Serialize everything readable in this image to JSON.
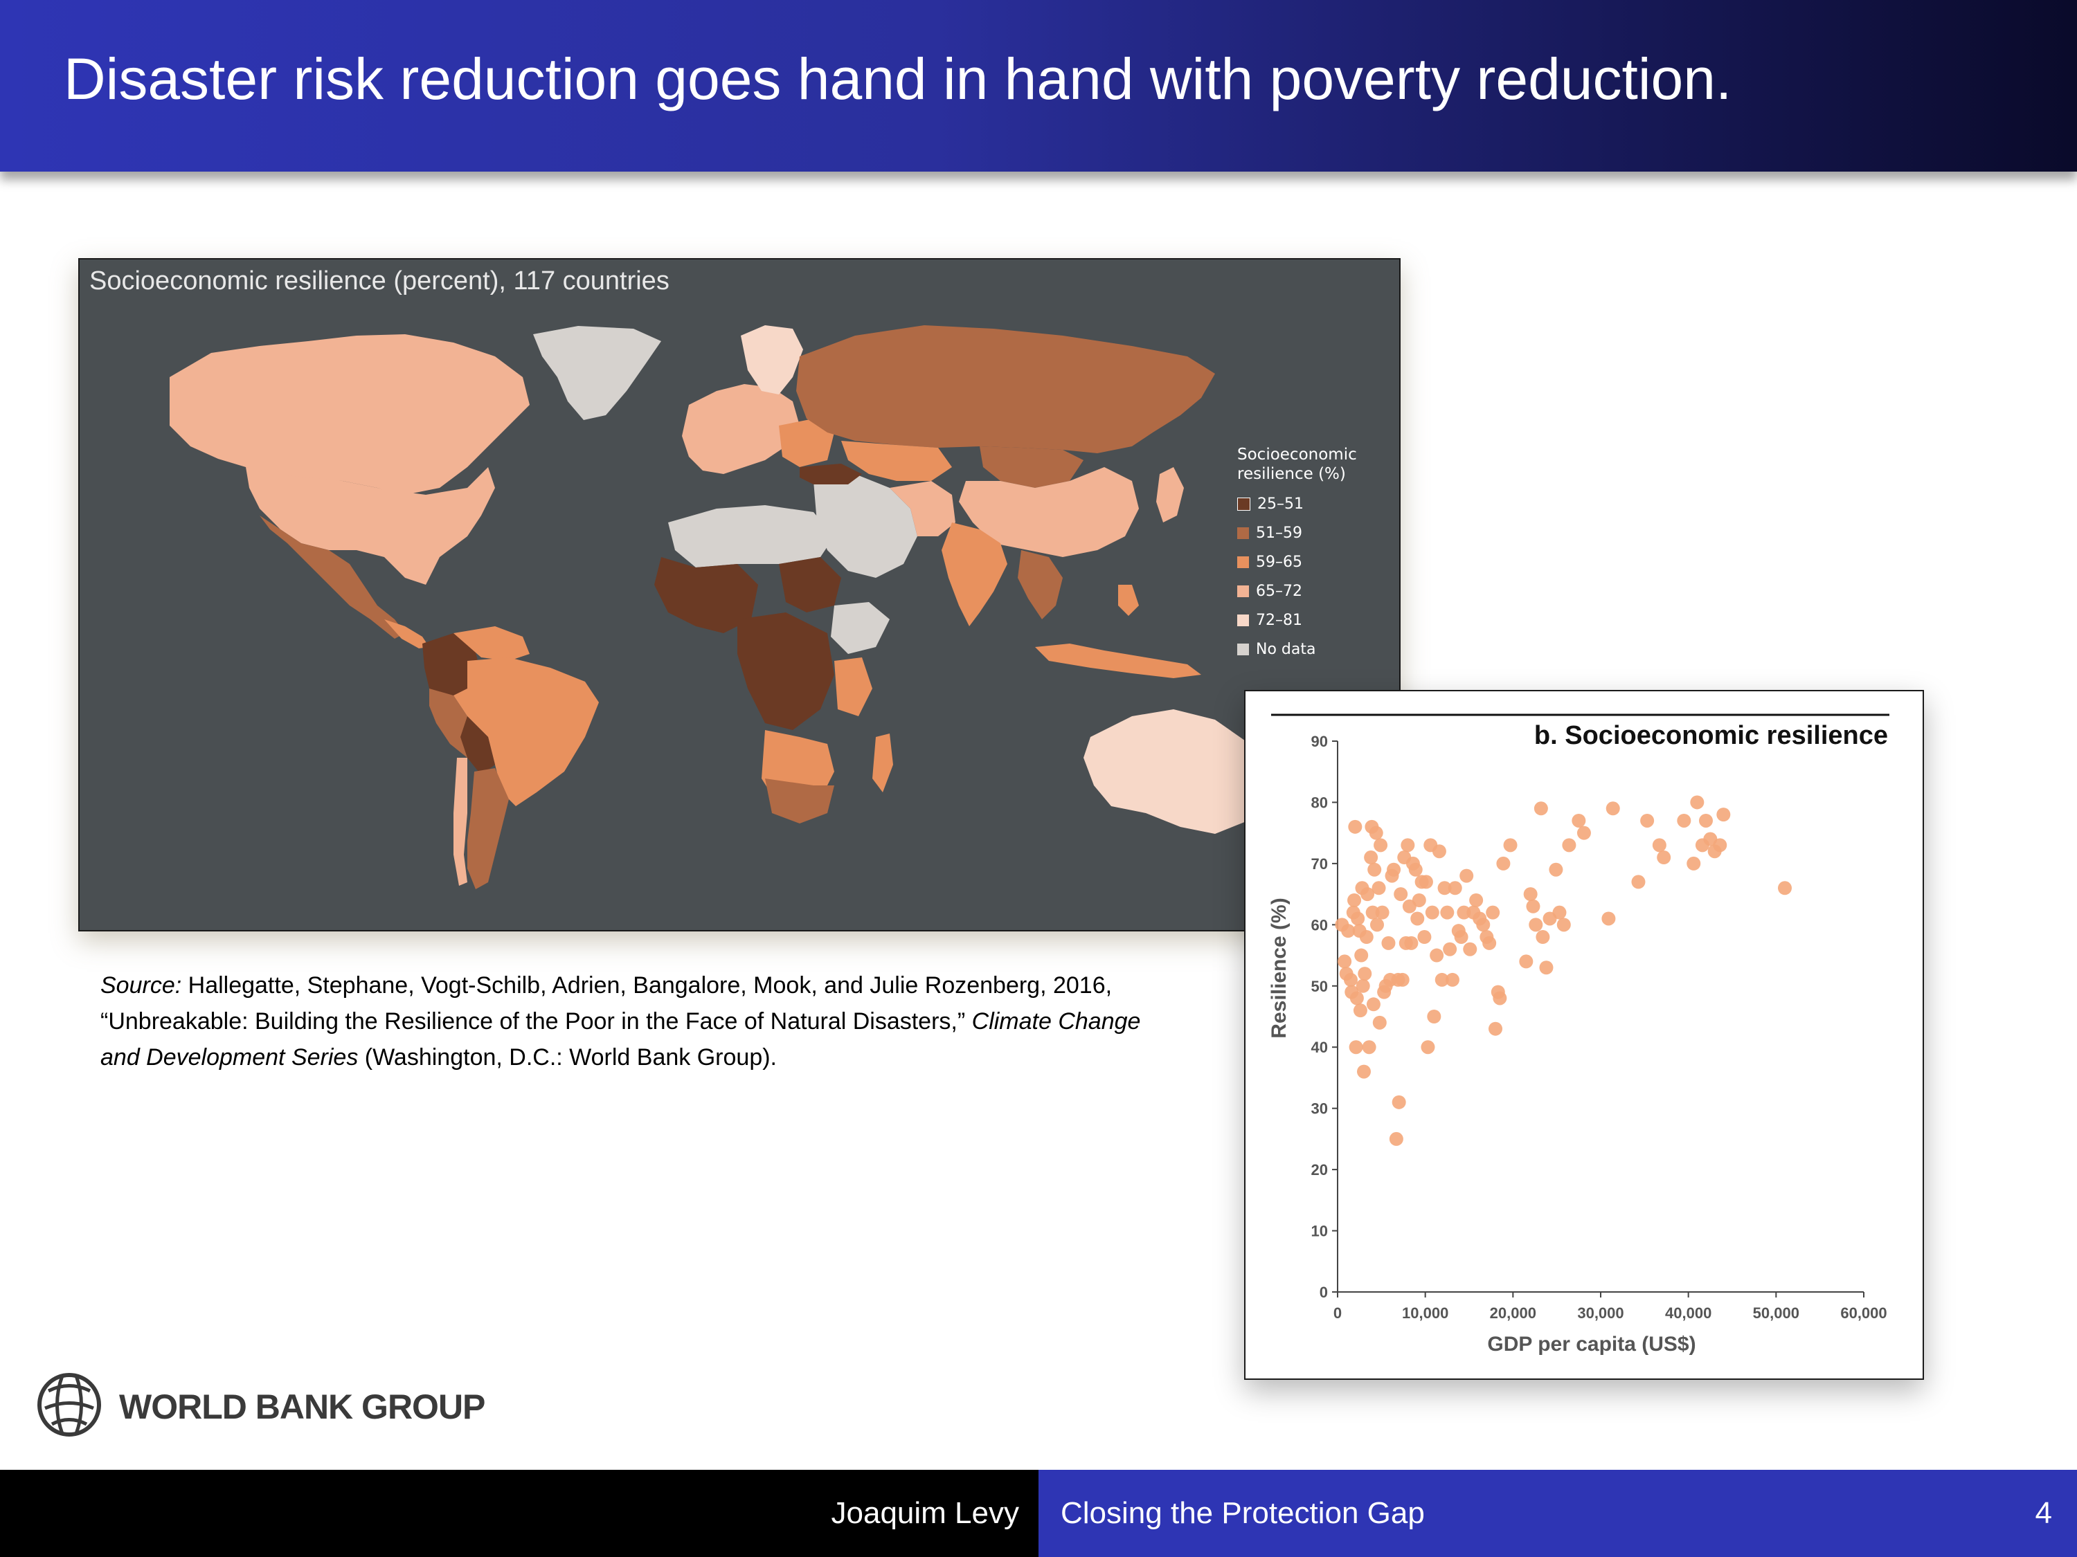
{
  "slide": {
    "title": "Disaster risk reduction goes hand in hand with poverty reduction.",
    "page_number": "4"
  },
  "map": {
    "title": "Socioeconomic resilience (percent), 117 countries",
    "legend_title_line1": "Socioeconomic",
    "legend_title_line2": "resilience (%)",
    "legend": [
      {
        "label": "25–51",
        "color": "#6b3a24"
      },
      {
        "label": "51–59",
        "color": "#b06a45"
      },
      {
        "label": "59–65",
        "color": "#e8915e"
      },
      {
        "label": "65–72",
        "color": "#f2b394"
      },
      {
        "label": "72–81",
        "color": "#f7d8c8"
      },
      {
        "label": "No data",
        "color": "#d6d2ce"
      }
    ]
  },
  "source": {
    "label": "Source:",
    "text1": " Hallegatte, Stephane, Vogt-Schilb, Adrien, Bangalore, Mook, and Julie Rozenberg, 2016, “Unbreakable: Building the Resilience of the Poor in the Face of Natural Disasters,” ",
    "series": "Climate Change and Development Series",
    "text2": " (Washington, D.C.: World Bank Group)."
  },
  "chart_data": {
    "type": "scatter",
    "title": "b. Socioeconomic resilience",
    "xlabel": "GDP per capita (US$)",
    "ylabel": "Resilience (%)",
    "xlim": [
      0,
      60000
    ],
    "ylim": [
      0,
      90
    ],
    "x_ticks": [
      "0",
      "10,000",
      "20,000",
      "30,000",
      "40,000",
      "50,000",
      "60,000"
    ],
    "y_ticks": [
      "0",
      "10",
      "20",
      "30",
      "40",
      "50",
      "60",
      "70",
      "80",
      "90"
    ],
    "color": "#f4a77a",
    "points": [
      [
        500,
        60
      ],
      [
        800,
        54
      ],
      [
        1000,
        52
      ],
      [
        1200,
        59
      ],
      [
        1500,
        51
      ],
      [
        1600,
        49
      ],
      [
        1800,
        62
      ],
      [
        1900,
        64
      ],
      [
        2000,
        76
      ],
      [
        2100,
        40
      ],
      [
        2200,
        48
      ],
      [
        2300,
        61
      ],
      [
        2500,
        59
      ],
      [
        2600,
        46
      ],
      [
        2700,
        55
      ],
      [
        2800,
        66
      ],
      [
        2900,
        50
      ],
      [
        3000,
        36
      ],
      [
        3100,
        52
      ],
      [
        3300,
        58
      ],
      [
        3400,
        65
      ],
      [
        3600,
        40
      ],
      [
        3800,
        71
      ],
      [
        3900,
        76
      ],
      [
        4000,
        62
      ],
      [
        4100,
        47
      ],
      [
        4200,
        69
      ],
      [
        4400,
        75
      ],
      [
        4500,
        60
      ],
      [
        4700,
        66
      ],
      [
        4800,
        44
      ],
      [
        4900,
        73
      ],
      [
        5100,
        62
      ],
      [
        5300,
        49
      ],
      [
        5500,
        50
      ],
      [
        5800,
        57
      ],
      [
        6000,
        51
      ],
      [
        6200,
        68
      ],
      [
        6400,
        69
      ],
      [
        6700,
        25
      ],
      [
        6900,
        51
      ],
      [
        7000,
        31
      ],
      [
        7200,
        65
      ],
      [
        7400,
        51
      ],
      [
        7600,
        71
      ],
      [
        7800,
        57
      ],
      [
        8000,
        73
      ],
      [
        8200,
        63
      ],
      [
        8400,
        57
      ],
      [
        8600,
        70
      ],
      [
        8900,
        69
      ],
      [
        9100,
        61
      ],
      [
        9300,
        64
      ],
      [
        9600,
        67
      ],
      [
        9900,
        58
      ],
      [
        10100,
        67
      ],
      [
        10300,
        40
      ],
      [
        10600,
        73
      ],
      [
        10800,
        62
      ],
      [
        11000,
        45
      ],
      [
        11300,
        55
      ],
      [
        11600,
        72
      ],
      [
        11900,
        51
      ],
      [
        12200,
        66
      ],
      [
        12500,
        62
      ],
      [
        12800,
        56
      ],
      [
        13100,
        51
      ],
      [
        13400,
        66
      ],
      [
        13800,
        59
      ],
      [
        14100,
        58
      ],
      [
        14400,
        62
      ],
      [
        14700,
        68
      ],
      [
        15100,
        56
      ],
      [
        15500,
        62
      ],
      [
        15800,
        64
      ],
      [
        16200,
        61
      ],
      [
        16600,
        60
      ],
      [
        17000,
        58
      ],
      [
        17300,
        57
      ],
      [
        17700,
        62
      ],
      [
        18000,
        43
      ],
      [
        18300,
        49
      ],
      [
        18500,
        48
      ],
      [
        18900,
        70
      ],
      [
        19700,
        73
      ],
      [
        21500,
        54
      ],
      [
        22000,
        65
      ],
      [
        22300,
        63
      ],
      [
        22600,
        60
      ],
      [
        23200,
        79
      ],
      [
        23400,
        58
      ],
      [
        23800,
        53
      ],
      [
        24200,
        61
      ],
      [
        24900,
        69
      ],
      [
        25300,
        62
      ],
      [
        25800,
        60
      ],
      [
        26400,
        73
      ],
      [
        27500,
        77
      ],
      [
        28100,
        75
      ],
      [
        30900,
        61
      ],
      [
        31400,
        79
      ],
      [
        34300,
        67
      ],
      [
        35300,
        77
      ],
      [
        36700,
        73
      ],
      [
        37200,
        71
      ],
      [
        39500,
        77
      ],
      [
        40600,
        70
      ],
      [
        41000,
        80
      ],
      [
        41600,
        73
      ],
      [
        42000,
        77
      ],
      [
        42500,
        74
      ],
      [
        43000,
        72
      ],
      [
        43600,
        73
      ],
      [
        44000,
        78
      ],
      [
        51000,
        66
      ]
    ]
  },
  "logo": {
    "text": "WORLD BANK GROUP"
  },
  "footer": {
    "author": "Joaquim Levy",
    "topic": "Closing the Protection Gap"
  }
}
